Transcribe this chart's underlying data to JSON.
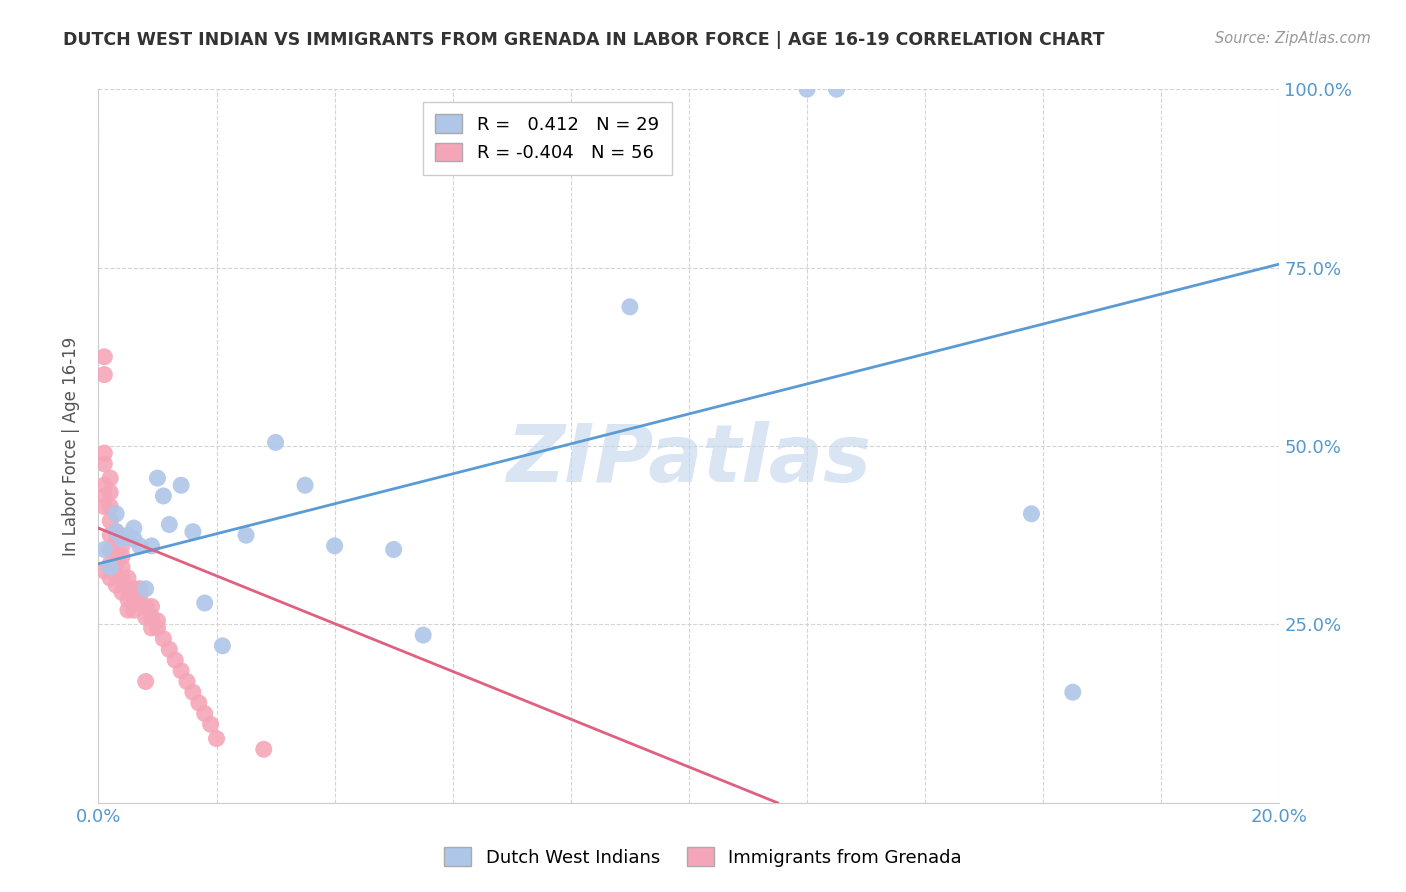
{
  "title": "DUTCH WEST INDIAN VS IMMIGRANTS FROM GRENADA IN LABOR FORCE | AGE 16-19 CORRELATION CHART",
  "source": "Source: ZipAtlas.com",
  "ylabel": "In Labor Force | Age 16-19",
  "watermark": "ZIPatlas",
  "blue_R": 0.412,
  "blue_N": 29,
  "pink_R": -0.404,
  "pink_N": 56,
  "blue_color": "#aec6e8",
  "blue_line_color": "#5b9bd5",
  "pink_color": "#f4a6b8",
  "pink_line_color": "#e06080",
  "axis_color": "#5599cc",
  "grid_color": "#d0d0d0",
  "watermark_color": "#c5d8ee",
  "blue_scatter_x": [
    0.001,
    0.002,
    0.003,
    0.003,
    0.004,
    0.005,
    0.006,
    0.006,
    0.007,
    0.008,
    0.009,
    0.01,
    0.011,
    0.012,
    0.014,
    0.016,
    0.018,
    0.021,
    0.025,
    0.03,
    0.035,
    0.04,
    0.05,
    0.055,
    0.09,
    0.12,
    0.125,
    0.158,
    0.165
  ],
  "blue_scatter_y": [
    0.355,
    0.33,
    0.38,
    0.405,
    0.37,
    0.375,
    0.37,
    0.385,
    0.36,
    0.3,
    0.36,
    0.455,
    0.43,
    0.39,
    0.445,
    0.38,
    0.28,
    0.22,
    0.375,
    0.505,
    0.445,
    0.36,
    0.355,
    0.235,
    0.695,
    1.0,
    1.0,
    0.405,
    0.155
  ],
  "pink_scatter_x": [
    0.001,
    0.001,
    0.001,
    0.001,
    0.001,
    0.001,
    0.001,
    0.001,
    0.002,
    0.002,
    0.002,
    0.002,
    0.002,
    0.002,
    0.002,
    0.002,
    0.003,
    0.003,
    0.003,
    0.003,
    0.003,
    0.003,
    0.004,
    0.004,
    0.004,
    0.004,
    0.004,
    0.005,
    0.005,
    0.005,
    0.005,
    0.006,
    0.006,
    0.006,
    0.007,
    0.007,
    0.007,
    0.008,
    0.008,
    0.008,
    0.009,
    0.009,
    0.009,
    0.01,
    0.01,
    0.011,
    0.012,
    0.013,
    0.014,
    0.015,
    0.016,
    0.017,
    0.018,
    0.019,
    0.02,
    0.028
  ],
  "pink_scatter_y": [
    0.625,
    0.6,
    0.49,
    0.475,
    0.445,
    0.43,
    0.415,
    0.325,
    0.455,
    0.435,
    0.415,
    0.395,
    0.375,
    0.355,
    0.335,
    0.315,
    0.38,
    0.365,
    0.35,
    0.335,
    0.32,
    0.305,
    0.36,
    0.345,
    0.33,
    0.315,
    0.295,
    0.315,
    0.3,
    0.285,
    0.27,
    0.3,
    0.285,
    0.27,
    0.3,
    0.29,
    0.28,
    0.275,
    0.26,
    0.17,
    0.275,
    0.26,
    0.245,
    0.255,
    0.245,
    0.23,
    0.215,
    0.2,
    0.185,
    0.17,
    0.155,
    0.14,
    0.125,
    0.11,
    0.09,
    0.075
  ],
  "blue_line_x": [
    0.0,
    0.2
  ],
  "blue_line_y": [
    0.335,
    0.755
  ],
  "pink_line_x": [
    0.0,
    0.115
  ],
  "pink_line_y": [
    0.385,
    0.0
  ],
  "xlim": [
    0.0,
    0.2
  ],
  "ylim": [
    0.0,
    1.0
  ],
  "figsize": [
    14.06,
    8.92
  ],
  "dpi": 100
}
